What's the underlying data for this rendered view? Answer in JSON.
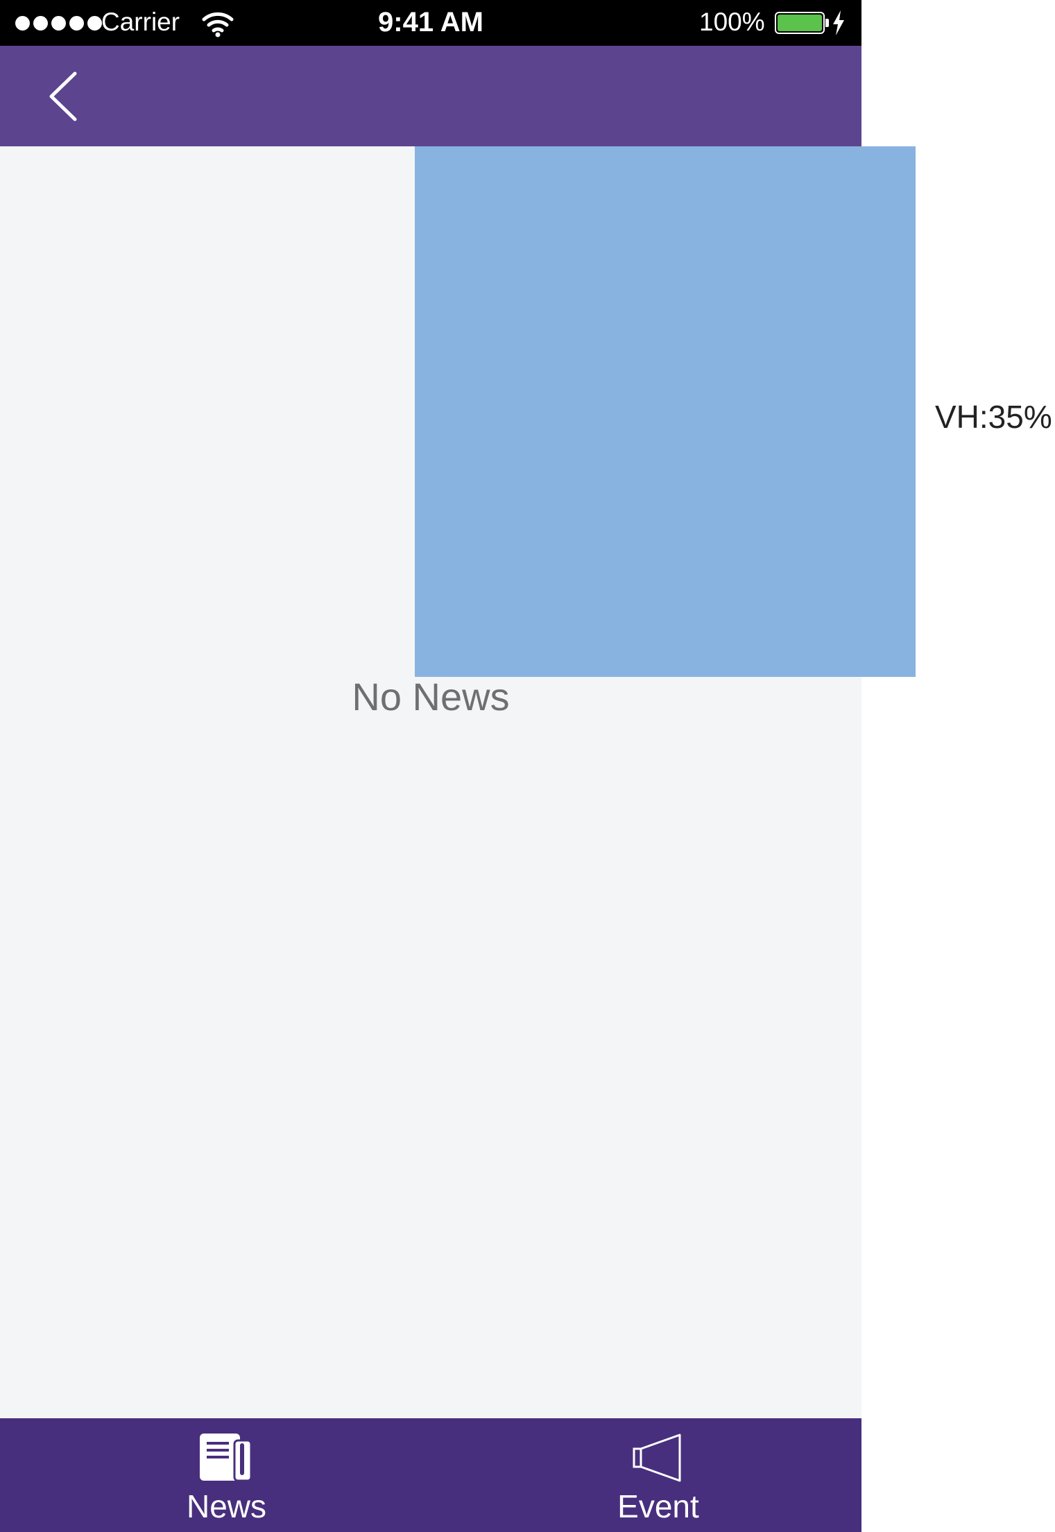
{
  "status_bar": {
    "carrier": "Carrier",
    "time": "9:41 AM",
    "battery_percent": "100%",
    "battery_level": 1.0,
    "battery_color": "#5bc24b",
    "signal_bars": 5
  },
  "nav_bar": {
    "background": "#5c448f",
    "back_icon": "chevron-left-icon"
  },
  "content": {
    "empty_message": "No News",
    "viewport_box_color": "#88b3e0",
    "viewport_annotation": "VH:35%"
  },
  "tab_bar": {
    "background": "#482f7d",
    "tabs": [
      {
        "label": "News",
        "icon": "newspaper-icon"
      },
      {
        "label": "Event",
        "icon": "megaphone-icon"
      }
    ]
  }
}
